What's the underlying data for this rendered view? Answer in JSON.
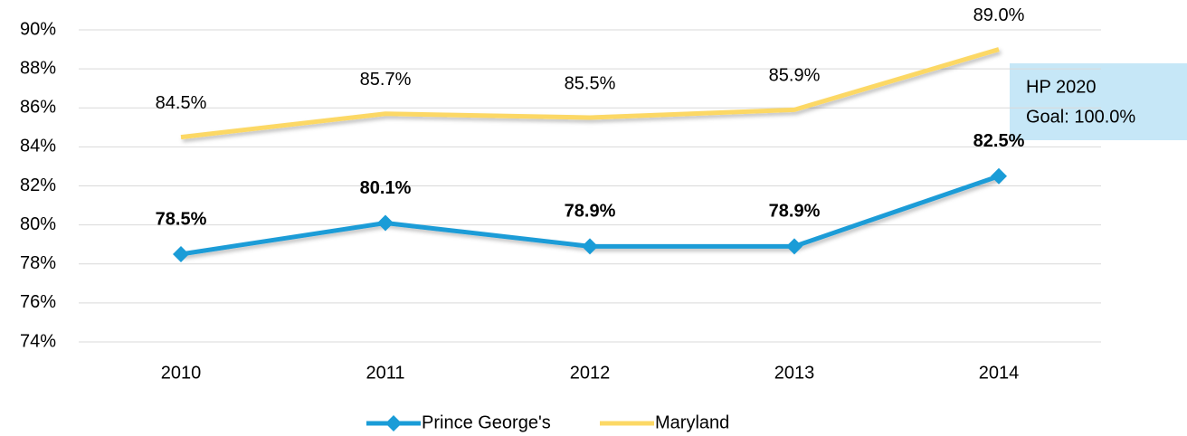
{
  "chart_data": {
    "type": "line",
    "categories": [
      "2010",
      "2011",
      "2012",
      "2013",
      "2014"
    ],
    "series": [
      {
        "name": "Prince George's",
        "color": "#1a9cd7",
        "values": [
          78.5,
          80.1,
          78.9,
          78.9,
          82.5
        ],
        "value_labels": [
          "78.5%",
          "80.1%",
          "78.9%",
          "78.9%",
          "82.5%"
        ]
      },
      {
        "name": "Maryland",
        "color": "#fcd865",
        "values": [
          84.5,
          85.7,
          85.5,
          85.9,
          89.0
        ],
        "value_labels": [
          "84.5%",
          "85.7%",
          "85.5%",
          "85.9%",
          "89.0%"
        ]
      }
    ],
    "ylim": [
      74,
      90
    ],
    "yticks": [
      {
        "value": 74,
        "label": "74%"
      },
      {
        "value": 76,
        "label": "76%"
      },
      {
        "value": 78,
        "label": "78%"
      },
      {
        "value": 80,
        "label": "80%"
      },
      {
        "value": 82,
        "label": "82%"
      },
      {
        "value": 84,
        "label": "84%"
      },
      {
        "value": 86,
        "label": "86%"
      },
      {
        "value": 88,
        "label": "88%"
      },
      {
        "value": 90,
        "label": "90%"
      }
    ],
    "grid": true,
    "legend": "bottom",
    "annotation": [
      "HP 2020",
      "Goal: 100.0%"
    ]
  }
}
